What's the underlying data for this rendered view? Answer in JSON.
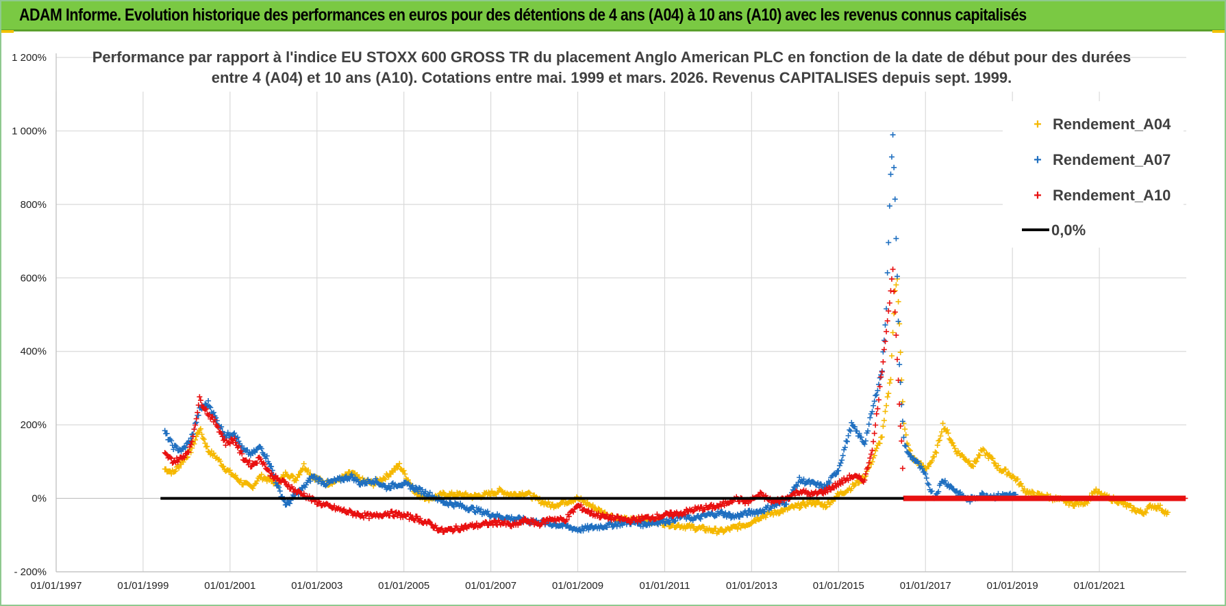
{
  "header": {
    "title": "ADAM Informe. Evolution historique des performances en euros pour des détentions de 4 ans (A04) à 10 ans (A10) avec les revenus connus capitalisés"
  },
  "colors": {
    "header_bg": "#7ac943",
    "a04": "#f5b800",
    "a07": "#1f6fc0",
    "a10": "#e81010",
    "zero": "#000000",
    "grid": "#d9d9d9"
  },
  "chart_data": {
    "type": "scatter",
    "title_line1": "Performance par rapport à l'indice EU STOXX 600 GROSS TR  du placement Anglo American PLC en fonction de la date de début pour des durées",
    "title_line2": "entre 4 (A04) et 10 ans (A10). Cotations entre mai. 1999 et mars. 2026. Revenus CAPITALISES depuis sept. 1999.",
    "xlabel": "",
    "ylabel": "",
    "x_range": [
      1997.0,
      2023.0
    ],
    "ylim": [
      -200,
      1200
    ],
    "y_ticks": [
      -200,
      0,
      200,
      400,
      600,
      800,
      1000,
      1200
    ],
    "y_tick_labels": [
      "- 200%",
      "0%",
      "200%",
      "400%",
      "600%",
      "800%",
      "1 000%",
      "1 200%"
    ],
    "x_ticks": [
      1997,
      1999,
      2001,
      2003,
      2005,
      2007,
      2009,
      2011,
      2013,
      2015,
      2017,
      2019,
      2021
    ],
    "x_tick_labels": [
      "01/01/1997",
      "01/01/1999",
      "01/01/2001",
      "01/01/2003",
      "01/01/2005",
      "01/01/2007",
      "01/01/2009",
      "01/01/2011",
      "01/01/2013",
      "01/01/2015",
      "01/01/2017",
      "01/01/2019",
      "01/01/2021"
    ],
    "legend_position": "top-right",
    "series": [
      {
        "name": "Rendement_A04",
        "color": "#f5b800",
        "points": [
          [
            1999.5,
            80
          ],
          [
            1999.7,
            70
          ],
          [
            1999.9,
            100
          ],
          [
            2000.1,
            130
          ],
          [
            2000.3,
            190
          ],
          [
            2000.5,
            130
          ],
          [
            2000.7,
            110
          ],
          [
            2000.9,
            80
          ],
          [
            2001.1,
            60
          ],
          [
            2001.3,
            40
          ],
          [
            2001.5,
            30
          ],
          [
            2001.7,
            60
          ],
          [
            2001.9,
            50
          ],
          [
            2002.1,
            40
          ],
          [
            2002.3,
            70
          ],
          [
            2002.5,
            50
          ],
          [
            2002.7,
            90
          ],
          [
            2002.9,
            60
          ],
          [
            2003.2,
            40
          ],
          [
            2003.5,
            50
          ],
          [
            2003.8,
            70
          ],
          [
            2004.0,
            50
          ],
          [
            2004.3,
            40
          ],
          [
            2004.6,
            60
          ],
          [
            2004.9,
            90
          ],
          [
            2005.1,
            50
          ],
          [
            2005.3,
            10
          ],
          [
            2005.6,
            0
          ],
          [
            2005.9,
            10
          ],
          [
            2006.3,
            10
          ],
          [
            2006.6,
            5
          ],
          [
            2006.9,
            10
          ],
          [
            2007.2,
            20
          ],
          [
            2007.5,
            10
          ],
          [
            2007.8,
            15
          ],
          [
            2008.1,
            -5
          ],
          [
            2008.4,
            -20
          ],
          [
            2008.7,
            -10
          ],
          [
            2009.0,
            0
          ],
          [
            2009.3,
            -20
          ],
          [
            2009.6,
            -40
          ],
          [
            2009.9,
            -55
          ],
          [
            2010.2,
            -60
          ],
          [
            2010.5,
            -55
          ],
          [
            2010.8,
            -65
          ],
          [
            2011.1,
            -70
          ],
          [
            2011.4,
            -75
          ],
          [
            2011.7,
            -80
          ],
          [
            2012.0,
            -85
          ],
          [
            2012.3,
            -90
          ],
          [
            2012.6,
            -80
          ],
          [
            2012.9,
            -70
          ],
          [
            2013.2,
            -50
          ],
          [
            2013.5,
            -40
          ],
          [
            2013.8,
            -30
          ],
          [
            2014.1,
            -20
          ],
          [
            2014.4,
            -10
          ],
          [
            2014.7,
            -20
          ],
          [
            2015.0,
            10
          ],
          [
            2015.3,
            30
          ],
          [
            2015.6,
            60
          ],
          [
            2015.8,
            110
          ],
          [
            2016.0,
            170
          ],
          [
            2016.1,
            250
          ],
          [
            2016.2,
            330
          ],
          [
            2016.25,
            450
          ],
          [
            2016.3,
            560
          ],
          [
            2016.35,
            600
          ],
          [
            2016.4,
            480
          ],
          [
            2016.45,
            320
          ],
          [
            2016.5,
            200
          ],
          [
            2016.6,
            140
          ],
          [
            2016.7,
            110
          ],
          [
            2016.9,
            90
          ],
          [
            2017.0,
            80
          ],
          [
            2017.2,
            110
          ],
          [
            2017.3,
            150
          ],
          [
            2017.4,
            200
          ],
          [
            2017.5,
            180
          ],
          [
            2017.7,
            130
          ],
          [
            2017.9,
            110
          ],
          [
            2018.1,
            90
          ],
          [
            2018.3,
            130
          ],
          [
            2018.5,
            110
          ],
          [
            2018.7,
            80
          ],
          [
            2018.9,
            70
          ],
          [
            2019.1,
            50
          ],
          [
            2019.3,
            20
          ],
          [
            2019.5,
            10
          ],
          [
            2019.8,
            5
          ],
          [
            2020.1,
            -5
          ],
          [
            2020.4,
            -15
          ],
          [
            2020.7,
            -10
          ],
          [
            2020.9,
            20
          ],
          [
            2021.1,
            5
          ],
          [
            2021.4,
            -5
          ],
          [
            2021.7,
            -25
          ],
          [
            2022.0,
            -40
          ],
          [
            2022.2,
            -20
          ],
          [
            2022.4,
            -25
          ],
          [
            2022.6,
            -45
          ]
        ]
      },
      {
        "name": "Rendement_A07",
        "color": "#1f6fc0",
        "points": [
          [
            1999.5,
            180
          ],
          [
            1999.7,
            140
          ],
          [
            1999.9,
            130
          ],
          [
            2000.1,
            160
          ],
          [
            2000.3,
            240
          ],
          [
            2000.5,
            260
          ],
          [
            2000.7,
            210
          ],
          [
            2000.9,
            170
          ],
          [
            2001.1,
            180
          ],
          [
            2001.3,
            130
          ],
          [
            2001.5,
            120
          ],
          [
            2001.7,
            140
          ],
          [
            2001.9,
            100
          ],
          [
            2002.1,
            30
          ],
          [
            2002.3,
            -20
          ],
          [
            2002.5,
            10
          ],
          [
            2002.7,
            30
          ],
          [
            2002.9,
            60
          ],
          [
            2003.2,
            40
          ],
          [
            2003.5,
            50
          ],
          [
            2003.8,
            60
          ],
          [
            2004.0,
            40
          ],
          [
            2004.3,
            50
          ],
          [
            2004.6,
            30
          ],
          [
            2004.9,
            40
          ],
          [
            2005.1,
            35
          ],
          [
            2005.3,
            25
          ],
          [
            2005.6,
            10
          ],
          [
            2005.9,
            -10
          ],
          [
            2006.3,
            -20
          ],
          [
            2006.6,
            -30
          ],
          [
            2006.9,
            -40
          ],
          [
            2007.2,
            -50
          ],
          [
            2007.5,
            -55
          ],
          [
            2007.8,
            -60
          ],
          [
            2008.1,
            -65
          ],
          [
            2008.4,
            -70
          ],
          [
            2008.7,
            -75
          ],
          [
            2009.0,
            -85
          ],
          [
            2009.3,
            -80
          ],
          [
            2009.6,
            -75
          ],
          [
            2009.9,
            -70
          ],
          [
            2010.2,
            -65
          ],
          [
            2010.5,
            -70
          ],
          [
            2010.8,
            -65
          ],
          [
            2011.1,
            -60
          ],
          [
            2011.4,
            -50
          ],
          [
            2011.7,
            -55
          ],
          [
            2012.0,
            -45
          ],
          [
            2012.3,
            -40
          ],
          [
            2012.6,
            -50
          ],
          [
            2012.9,
            -40
          ],
          [
            2013.2,
            -35
          ],
          [
            2013.5,
            -20
          ],
          [
            2013.8,
            -10
          ],
          [
            2014.1,
            50
          ],
          [
            2014.4,
            40
          ],
          [
            2014.7,
            30
          ],
          [
            2015.0,
            80
          ],
          [
            2015.3,
            200
          ],
          [
            2015.6,
            150
          ],
          [
            2015.8,
            250
          ],
          [
            2016.0,
            350
          ],
          [
            2016.1,
            520
          ],
          [
            2016.15,
            700
          ],
          [
            2016.2,
            880
          ],
          [
            2016.25,
            990
          ],
          [
            2016.3,
            820
          ],
          [
            2016.35,
            600
          ],
          [
            2016.4,
            360
          ],
          [
            2016.5,
            160
          ],
          [
            2016.6,
            120
          ],
          [
            2016.8,
            100
          ],
          [
            2017.0,
            60
          ],
          [
            2017.2,
            0
          ],
          [
            2017.4,
            50
          ],
          [
            2017.6,
            30
          ],
          [
            2017.8,
            10
          ],
          [
            2018.0,
            -5
          ],
          [
            2018.3,
            10
          ],
          [
            2018.6,
            5
          ],
          [
            2018.9,
            10
          ],
          [
            2019.1,
            5
          ]
        ]
      },
      {
        "name": "Rendement_A10",
        "color": "#e81010",
        "points": [
          [
            1999.5,
            120
          ],
          [
            1999.7,
            100
          ],
          [
            1999.9,
            110
          ],
          [
            2000.1,
            140
          ],
          [
            2000.3,
            270
          ],
          [
            2000.5,
            230
          ],
          [
            2000.7,
            200
          ],
          [
            2000.9,
            150
          ],
          [
            2001.1,
            160
          ],
          [
            2001.3,
            110
          ],
          [
            2001.5,
            90
          ],
          [
            2001.7,
            110
          ],
          [
            2001.9,
            70
          ],
          [
            2002.1,
            50
          ],
          [
            2002.3,
            40
          ],
          [
            2002.5,
            20
          ],
          [
            2002.7,
            10
          ],
          [
            2002.9,
            -5
          ],
          [
            2003.2,
            -20
          ],
          [
            2003.5,
            -30
          ],
          [
            2003.8,
            -40
          ],
          [
            2004.0,
            -45
          ],
          [
            2004.3,
            -50
          ],
          [
            2004.6,
            -40
          ],
          [
            2004.9,
            -45
          ],
          [
            2005.1,
            -50
          ],
          [
            2005.3,
            -55
          ],
          [
            2005.6,
            -70
          ],
          [
            2005.9,
            -90
          ],
          [
            2006.3,
            -80
          ],
          [
            2006.6,
            -75
          ],
          [
            2006.9,
            -70
          ],
          [
            2007.2,
            -65
          ],
          [
            2007.5,
            -75
          ],
          [
            2007.8,
            -60
          ],
          [
            2008.1,
            -70
          ],
          [
            2008.4,
            -55
          ],
          [
            2008.7,
            -60
          ],
          [
            2009.0,
            -20
          ],
          [
            2009.3,
            -40
          ],
          [
            2009.6,
            -50
          ],
          [
            2009.9,
            -55
          ],
          [
            2010.2,
            -60
          ],
          [
            2010.5,
            -55
          ],
          [
            2010.8,
            -50
          ],
          [
            2011.1,
            -45
          ],
          [
            2011.4,
            -40
          ],
          [
            2011.7,
            -30
          ],
          [
            2012.0,
            -25
          ],
          [
            2012.3,
            -20
          ],
          [
            2012.6,
            0
          ],
          [
            2012.9,
            -10
          ],
          [
            2013.2,
            10
          ],
          [
            2013.5,
            -10
          ],
          [
            2013.8,
            0
          ],
          [
            2014.1,
            20
          ],
          [
            2014.4,
            10
          ],
          [
            2014.7,
            20
          ],
          [
            2015.0,
            40
          ],
          [
            2015.3,
            60
          ],
          [
            2015.6,
            50
          ],
          [
            2015.8,
            150
          ],
          [
            2016.0,
            350
          ],
          [
            2016.1,
            460
          ],
          [
            2016.2,
            560
          ],
          [
            2016.25,
            630
          ],
          [
            2016.3,
            500
          ],
          [
            2016.35,
            380
          ],
          [
            2016.4,
            250
          ],
          [
            2016.45,
            150
          ],
          [
            2016.5,
            0
          ],
          [
            2017.0,
            0
          ],
          [
            2017.5,
            0
          ],
          [
            2018.0,
            0
          ],
          [
            2018.5,
            0
          ],
          [
            2019.0,
            0
          ],
          [
            2019.5,
            0
          ],
          [
            2020.0,
            0
          ],
          [
            2020.5,
            0
          ],
          [
            2021.0,
            0
          ],
          [
            2021.5,
            0
          ],
          [
            2022.0,
            0
          ],
          [
            2022.5,
            0
          ],
          [
            2023.0,
            0
          ]
        ]
      }
    ],
    "zero_line": {
      "label": "0,0%",
      "x_start": 1999.4,
      "x_end": 2016.5,
      "value": 0
    }
  }
}
